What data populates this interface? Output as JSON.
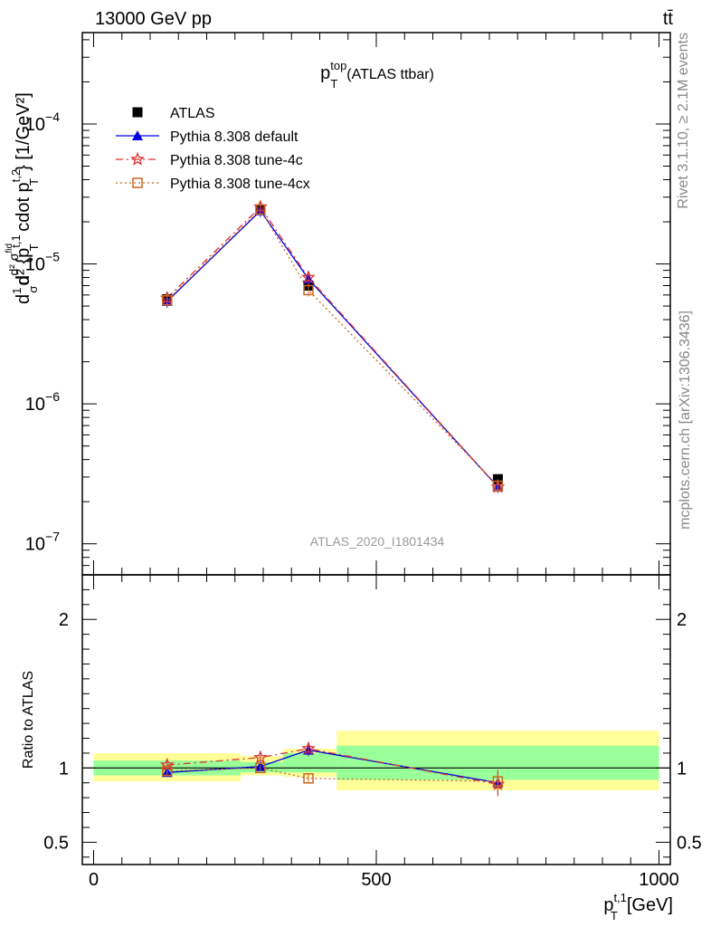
{
  "header": {
    "process": "13000 GeV pp",
    "final_state": "tt̄",
    "side_label_top": "Rivet 3.1.10, ≥ 2.1M events",
    "side_label_bottom": "mcplots.cern.ch [arXiv:1306.3436]"
  },
  "chart_data": [
    {
      "type": "line",
      "panel": "main",
      "title": "p_T^top (ATLAS ttbar)",
      "title_main": "p",
      "title_sup": "top",
      "title_sub": "T",
      "title_rest": "(ATLAS ttbar)",
      "ylabel": "d²σ/d{p_T^t,1 cdot p_T^t,2} [1/GeV²]",
      "ylabel_parts": {
        "prefix": "d",
        "frac_num": "1",
        "frac_den": "σ",
        "d": "d",
        "sigma_num": "d² σ",
        "sigma_sup": "fid",
        "body": "d² {p",
        "sup1": "t,1",
        "sub1": "T",
        "mid": " cdot p",
        "sup2": "t,2",
        "sub2": "T",
        "suffix": "} [1/GeV²]"
      },
      "yscale": "log",
      "ylim": [
        6e-08,
        0.00045
      ],
      "yticks": [
        {
          "value": 1e-07,
          "label": "10",
          "exp": "−7"
        },
        {
          "value": 1e-06,
          "label": "10",
          "exp": "−6"
        },
        {
          "value": 1e-05,
          "label": "10",
          "exp": "−5"
        },
        {
          "value": 0.0001,
          "label": "10",
          "exp": "−4"
        }
      ],
      "xlim": [
        -20,
        1020
      ],
      "watermark": "ATLAS_2020_I1801434",
      "legend_position": "top-left",
      "series": [
        {
          "name": "ATLAS",
          "color": "#000000",
          "marker": "filled-square",
          "line": "none",
          "x": [
            130,
            295,
            380,
            715
          ],
          "y": [
            5.6e-06,
            2.45e-05,
            7e-06,
            2.9e-07
          ]
        },
        {
          "name": "Pythia 8.308 default",
          "color": "#0000dd",
          "marker": "filled-triangle",
          "line": "solid",
          "x": [
            130,
            295,
            380,
            715
          ],
          "y": [
            5.4e-06,
            2.4e-05,
            7.8e-06,
            2.55e-07
          ]
        },
        {
          "name": "Pythia 8.308 tune-4c",
          "color": "#dd3333",
          "marker": "star",
          "line": "dash-dot",
          "x": [
            130,
            295,
            380,
            715
          ],
          "y": [
            5.7e-06,
            2.55e-05,
            8e-06,
            2.55e-07
          ]
        },
        {
          "name": "Pythia 8.308 tune-4cx",
          "color": "#cc6622",
          "marker": "open-square",
          "line": "dotted",
          "x": [
            130,
            295,
            380,
            715
          ],
          "y": [
            5.5e-06,
            2.45e-05,
            6.5e-06,
            2.6e-07
          ]
        }
      ]
    },
    {
      "type": "line",
      "panel": "ratio",
      "ylabel": "Ratio to ATLAS",
      "xlabel": "p_T^t,1 [GeV]",
      "xlabel_main": "p",
      "xlabel_sup": "t,1",
      "xlabel_sub": "T",
      "xlabel_rest": "[GeV]",
      "yscale": "linear",
      "ylim": [
        0.35,
        2.3
      ],
      "yticks": [
        {
          "value": 0.5,
          "label": "0.5"
        },
        {
          "value": 1,
          "label": "1"
        },
        {
          "value": 2,
          "label": "2"
        }
      ],
      "xlim": [
        -20,
        1020
      ],
      "xticks": [
        {
          "value": 0,
          "label": "0"
        },
        {
          "value": 500,
          "label": "500"
        },
        {
          "value": 1000,
          "label": "1000"
        }
      ],
      "bands": [
        {
          "x0": 0,
          "x1": 260,
          "outer": [
            0.91,
            1.1
          ],
          "inner": [
            0.95,
            1.05
          ]
        },
        {
          "x0": 260,
          "x1": 335,
          "outer": [
            0.95,
            1.08
          ],
          "inner": [
            0.97,
            1.04
          ]
        },
        {
          "x0": 335,
          "x1": 430,
          "outer": [
            0.94,
            1.13
          ],
          "inner": [
            0.97,
            1.1
          ]
        },
        {
          "x0": 430,
          "x1": 1000,
          "outer": [
            0.85,
            1.25
          ],
          "inner": [
            0.92,
            1.15
          ]
        }
      ],
      "band_colors": {
        "outer": "#ffff99",
        "inner": "#99ff99"
      },
      "series": [
        {
          "name": "Pythia 8.308 default",
          "color": "#0000dd",
          "marker": "filled-triangle",
          "line": "solid",
          "x": [
            130,
            295,
            380,
            715
          ],
          "y": [
            0.97,
            1.01,
            1.12,
            0.9
          ],
          "err": [
            0.03,
            0.02,
            0.04,
            0.08
          ]
        },
        {
          "name": "Pythia 8.308 tune-4c",
          "color": "#dd3333",
          "marker": "star",
          "line": "dash-dot",
          "x": [
            130,
            295,
            380,
            715
          ],
          "y": [
            1.02,
            1.07,
            1.13,
            0.89
          ],
          "err": [
            0.03,
            0.02,
            0.04,
            0.08
          ]
        },
        {
          "name": "Pythia 8.308 tune-4cx",
          "color": "#cc6622",
          "marker": "open-square",
          "line": "dotted",
          "x": [
            130,
            295,
            380,
            715
          ],
          "y": [
            0.98,
            1.0,
            0.93,
            0.91
          ],
          "err": [
            0.03,
            0.02,
            0.03,
            0.08
          ]
        }
      ]
    }
  ]
}
